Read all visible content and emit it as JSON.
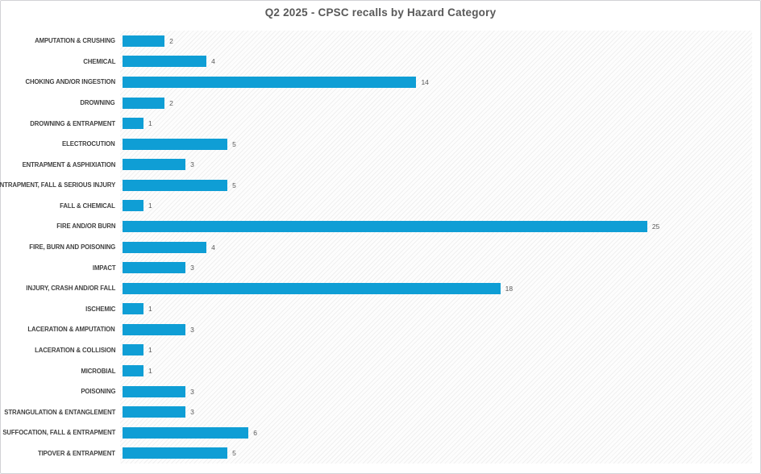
{
  "page": {
    "background": "#ffffff",
    "border_color": "#d2d2d6"
  },
  "colors": {
    "bar": "#0F9ED5",
    "title_text": "#595959",
    "category_text": "#404040",
    "value_text": "#595959",
    "plot_hatch": "#e9e9e9"
  },
  "chart_data": {
    "type": "bar",
    "orientation": "horizontal",
    "title": "Q2 2025 - CPSC recalls by Hazard Category",
    "xlabel": "",
    "ylabel": "",
    "xlim": [
      0,
      30
    ],
    "grid": false,
    "legend": false,
    "data_labels": true,
    "categories": [
      "AMPUTATION & CRUSHING",
      "CHEMICAL",
      "CHOKING AND/OR INGESTION",
      "DROWNING",
      "DROWNING & ENTRAPMENT",
      "ELECTROCUTION",
      "ENTRAPMENT & ASPHIXIATION",
      "ENTRAPMENT, FALL & SERIOUS INJURY",
      "FALL & CHEMICAL",
      "FIRE AND/OR BURN",
      "FIRE, BURN AND POISONING",
      "IMPACT",
      "INJURY, CRASH AND/OR FALL",
      "ISCHEMIC",
      "LACERATION & AMPUTATION",
      "LACERATION & COLLISION",
      "MICROBIAL",
      "POISONING",
      "STRANGULATION & ENTANGLEMENT",
      "SUFFOCATION, FALL & ENTRAPMENT",
      "TIPOVER & ENTRAPMENT"
    ],
    "values": [
      2,
      4,
      14,
      2,
      1,
      5,
      3,
      5,
      1,
      25,
      4,
      3,
      18,
      1,
      3,
      1,
      1,
      3,
      3,
      6,
      5
    ]
  }
}
